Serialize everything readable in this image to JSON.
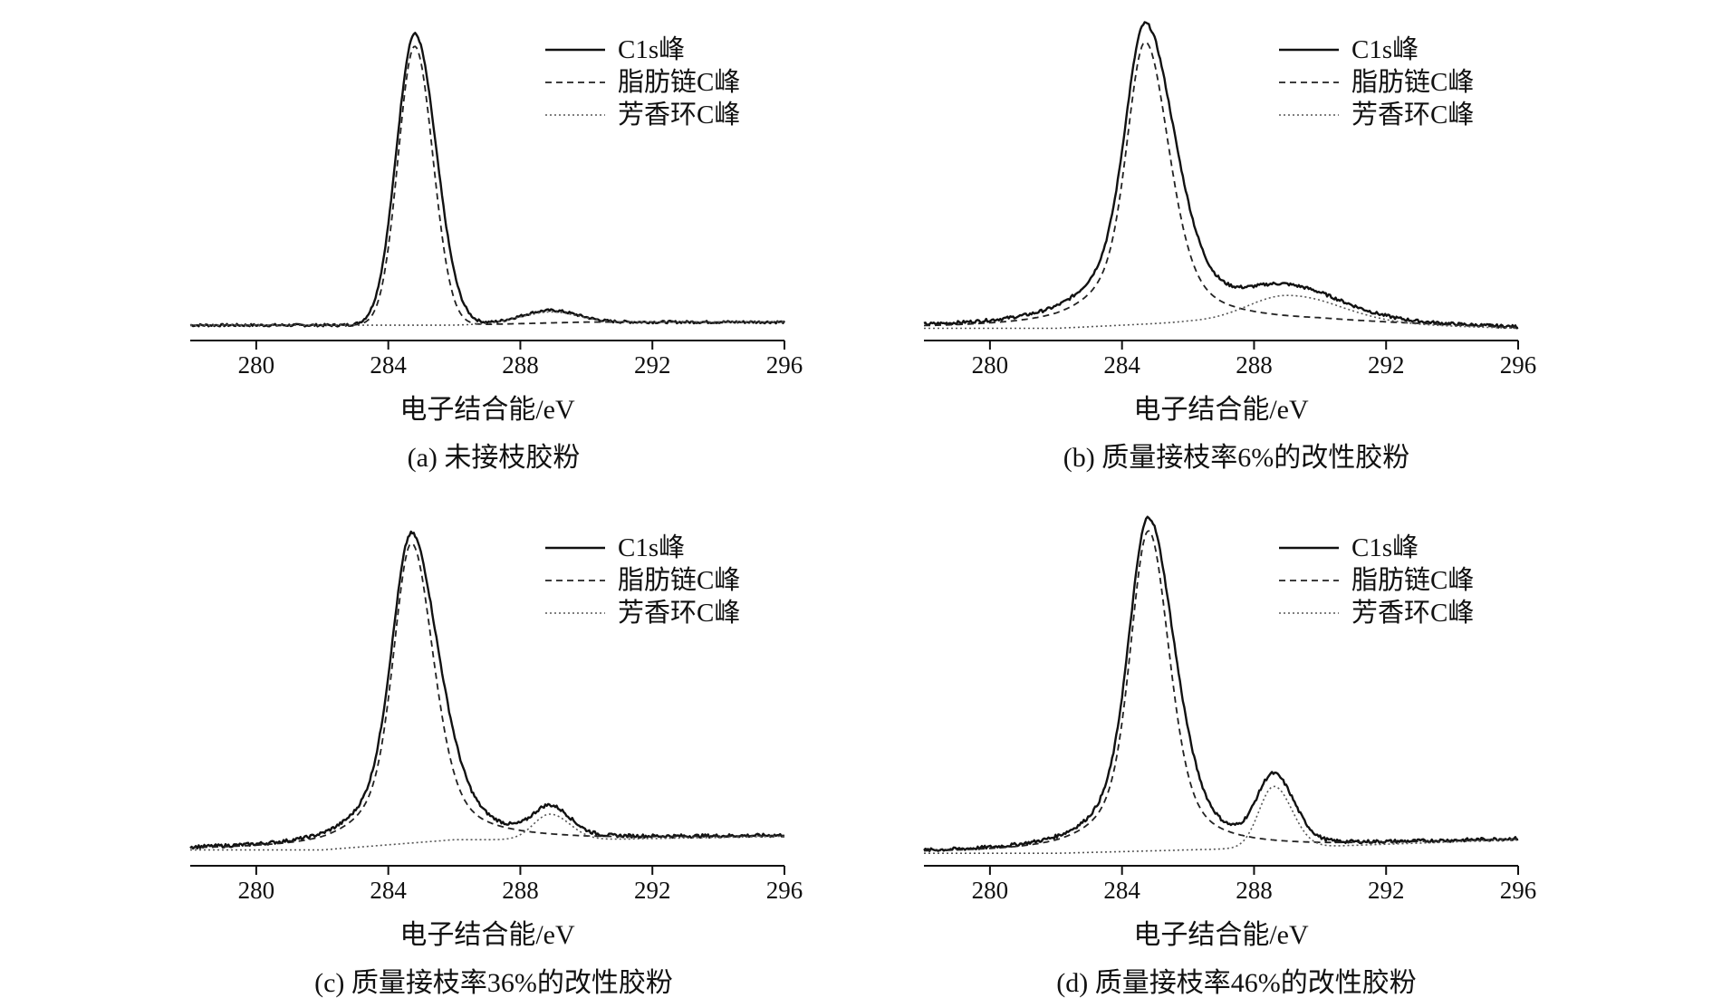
{
  "figure": {
    "colors": {
      "ink": "#111111",
      "c1s": "#111111",
      "aliphatic": "#222222",
      "aromatic": "#555555"
    }
  },
  "chart_data": [
    {
      "type": "line",
      "panel": "a",
      "caption": "(a) 未接枝胶粉",
      "xlabel": "电子结合能/eV",
      "ylabel": "",
      "xlim": [
        278,
        296
      ],
      "xticks": [
        280,
        284,
        288,
        292,
        296
      ],
      "y_scale": "relative intensity (no y axis printed)",
      "legend": {
        "position": "top-right",
        "entries": [
          "C1s峰",
          "脂肪链C峰",
          "芳香环C峰"
        ]
      },
      "baseline": [
        [
          278,
          0.02
        ],
        [
          282,
          0.02
        ],
        [
          286,
          0.02
        ],
        [
          290,
          0.03
        ],
        [
          296,
          0.03
        ]
      ],
      "series": [
        {
          "name": "C1s峰",
          "style": "solid",
          "peaks": [
            {
              "center": 284.8,
              "height": 0.93,
              "sigma_left": 0.55,
              "sigma_right": 0.65
            },
            {
              "center": 288.9,
              "height": 0.04,
              "sigma_left": 0.9,
              "sigma_right": 0.8
            }
          ],
          "noise": 0.004
        },
        {
          "name": "脂肪链C峰",
          "style": "dashed",
          "peaks": [
            {
              "center": 284.8,
              "height": 0.89,
              "sigma_left": 0.5,
              "sigma_right": 0.55
            }
          ]
        },
        {
          "name": "芳香环C峰",
          "style": "dotted",
          "peaks": [
            {
              "center": 288.9,
              "height": 0.035,
              "sigma_left": 0.9,
              "sigma_right": 0.8
            }
          ]
        }
      ]
    },
    {
      "type": "line",
      "panel": "b",
      "caption": "(b) 质量接枝率6%的改性胶粉",
      "xlabel": "电子结合能/eV",
      "ylabel": "",
      "xlim": [
        278,
        296
      ],
      "xticks": [
        280,
        284,
        288,
        292,
        296
      ],
      "y_scale": "relative intensity (no y axis printed)",
      "legend": {
        "position": "top-right",
        "entries": [
          "C1s峰",
          "脂肪链C峰",
          "芳香环C峰"
        ]
      },
      "baseline": [
        [
          278,
          0.01
        ],
        [
          282,
          0.01
        ],
        [
          286,
          0.03
        ],
        [
          290,
          0.03
        ],
        [
          296,
          0.01
        ]
      ],
      "series": [
        {
          "name": "C1s峰",
          "style": "solid",
          "peaks": [
            {
              "center": 284.7,
              "height": 0.96,
              "sigma_left": 0.55,
              "sigma_right": 0.9,
              "lorentz": 1.2
            },
            {
              "center": 289.0,
              "height": 0.09,
              "sigma_left": 1.2,
              "sigma_right": 1.6
            }
          ],
          "noise": 0.005
        },
        {
          "name": "脂肪链C峰",
          "style": "dashed",
          "peaks": [
            {
              "center": 284.7,
              "height": 0.9,
              "sigma_left": 0.5,
              "sigma_right": 0.7,
              "lorentz": 1.0
            }
          ]
        },
        {
          "name": "芳香环C峰",
          "style": "dotted",
          "peaks": [
            {
              "center": 289.0,
              "height": 0.085,
              "sigma_left": 1.2,
              "sigma_right": 1.6
            }
          ]
        }
      ]
    },
    {
      "type": "line",
      "panel": "c",
      "caption": "(c) 质量接枝率36%的改性胶粉",
      "xlabel": "电子结合能/eV",
      "ylabel": "",
      "xlim": [
        278,
        296
      ],
      "xticks": [
        280,
        284,
        288,
        292,
        296
      ],
      "y_scale": "relative intensity (no y axis printed)",
      "legend": {
        "position": "top-right",
        "entries": [
          "C1s峰",
          "脂肪链C峰",
          "芳香环C峰"
        ]
      },
      "baseline": [
        [
          278,
          0.02
        ],
        [
          282,
          0.02
        ],
        [
          286,
          0.05
        ],
        [
          290,
          0.05
        ],
        [
          296,
          0.06
        ]
      ],
      "series": [
        {
          "name": "C1s峰",
          "style": "solid",
          "peaks": [
            {
              "center": 284.7,
              "height": 0.91,
              "sigma_left": 0.55,
              "sigma_right": 0.85,
              "lorentz": 1.0
            },
            {
              "center": 288.9,
              "height": 0.08,
              "sigma_left": 0.5,
              "sigma_right": 0.6
            }
          ],
          "noise": 0.005
        },
        {
          "name": "脂肪链C峰",
          "style": "dashed",
          "peaks": [
            {
              "center": 284.7,
              "height": 0.88,
              "sigma_left": 0.5,
              "sigma_right": 0.65,
              "lorentz": 0.9
            }
          ]
        },
        {
          "name": "芳香环C峰",
          "style": "dotted",
          "peaks": [
            {
              "center": 288.9,
              "height": 0.075,
              "sigma_left": 0.5,
              "sigma_right": 0.6
            }
          ]
        }
      ]
    },
    {
      "type": "line",
      "panel": "d",
      "caption": "(d) 质量接枝率46%的改性胶粉",
      "xlabel": "电子结合能/eV",
      "ylabel": "",
      "xlim": [
        278,
        296
      ],
      "xticks": [
        280,
        284,
        288,
        292,
        296
      ],
      "y_scale": "relative intensity (no y axis printed)",
      "legend": {
        "position": "top-right",
        "entries": [
          "C1s峰",
          "脂肪链C峰",
          "芳香环C峰"
        ]
      },
      "baseline": [
        [
          278,
          0.01
        ],
        [
          282,
          0.01
        ],
        [
          286,
          0.02
        ],
        [
          290,
          0.03
        ],
        [
          296,
          0.05
        ]
      ],
      "series": [
        {
          "name": "C1s峰",
          "style": "solid",
          "peaks": [
            {
              "center": 284.8,
              "height": 0.98,
              "sigma_left": 0.55,
              "sigma_right": 0.8,
              "lorentz": 1.0
            },
            {
              "center": 288.6,
              "height": 0.19,
              "sigma_left": 0.5,
              "sigma_right": 0.6
            }
          ],
          "noise": 0.005
        },
        {
          "name": "脂肪链C峰",
          "style": "dashed",
          "peaks": [
            {
              "center": 284.8,
              "height": 0.94,
              "sigma_left": 0.5,
              "sigma_right": 0.6,
              "lorentz": 0.9
            }
          ]
        },
        {
          "name": "芳香环C峰",
          "style": "dotted",
          "peaks": [
            {
              "center": 288.6,
              "height": 0.18,
              "sigma_left": 0.45,
              "sigma_right": 0.55
            }
          ]
        }
      ]
    }
  ]
}
